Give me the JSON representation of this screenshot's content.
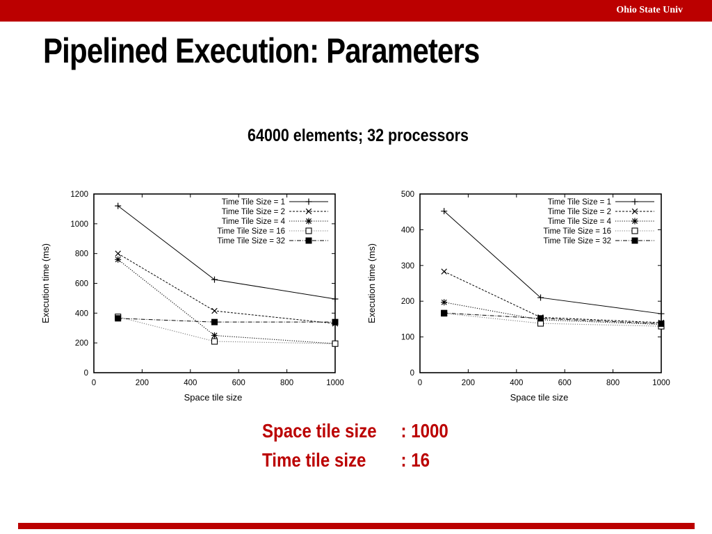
{
  "header": {
    "org": "Ohio State Univ",
    "accent_color": "#bb0000"
  },
  "slide": {
    "title": "Pipelined Execution: Parameters",
    "subtitle": "64000 elements; 32 processors"
  },
  "params": [
    {
      "label": "Space tile size",
      "value": ": 1000"
    },
    {
      "label": "Time tile size",
      "value": ": 16"
    }
  ],
  "chart_data": [
    {
      "type": "line",
      "xlabel": "Space tile size",
      "ylabel": "Execution time (ms)",
      "xlim": [
        0,
        1000
      ],
      "ylim": [
        0,
        1200
      ],
      "xticks": [
        0,
        200,
        400,
        600,
        800,
        1000
      ],
      "yticks": [
        0,
        200,
        400,
        600,
        800,
        1000,
        1200
      ],
      "legend_position": "top-right",
      "x": [
        100,
        500,
        1000
      ],
      "series": [
        {
          "name": "Time Tile Size = 1",
          "marker": "plus",
          "dash": "solid",
          "values": [
            1120,
            625,
            495
          ]
        },
        {
          "name": "Time Tile Size = 2",
          "marker": "cross",
          "dash": "dashed",
          "values": [
            800,
            415,
            330
          ]
        },
        {
          "name": "Time Tile Size = 4",
          "marker": "star",
          "dash": "dotted",
          "values": [
            760,
            250,
            195
          ]
        },
        {
          "name": "Time Tile Size = 16",
          "marker": "square-open",
          "dash": "dotted-gray",
          "values": [
            375,
            210,
            195
          ]
        },
        {
          "name": "Time Tile Size = 32",
          "marker": "square-filled",
          "dash": "dashdot",
          "values": [
            365,
            340,
            340
          ]
        }
      ]
    },
    {
      "type": "line",
      "xlabel": "Space tile size",
      "ylabel": "Execution time (ms)",
      "xlim": [
        0,
        1000
      ],
      "ylim": [
        0,
        500
      ],
      "xticks": [
        0,
        200,
        400,
        600,
        800,
        1000
      ],
      "yticks": [
        0,
        100,
        200,
        300,
        400,
        500
      ],
      "legend_position": "top-right",
      "x": [
        100,
        500,
        1000
      ],
      "series": [
        {
          "name": "Time Tile Size = 1",
          "marker": "plus",
          "dash": "solid",
          "values": [
            452,
            210,
            165
          ]
        },
        {
          "name": "Time Tile Size = 2",
          "marker": "cross",
          "dash": "dashed",
          "values": [
            283,
            155,
            140
          ]
        },
        {
          "name": "Time Tile Size = 4",
          "marker": "star",
          "dash": "dotted",
          "values": [
            197,
            148,
            135
          ]
        },
        {
          "name": "Time Tile Size = 16",
          "marker": "square-open",
          "dash": "dotted-gray",
          "values": [
            166,
            138,
            130
          ]
        },
        {
          "name": "Time Tile Size = 32",
          "marker": "square-filled",
          "dash": "dashdot",
          "values": [
            167,
            152,
            137
          ]
        }
      ]
    }
  ]
}
